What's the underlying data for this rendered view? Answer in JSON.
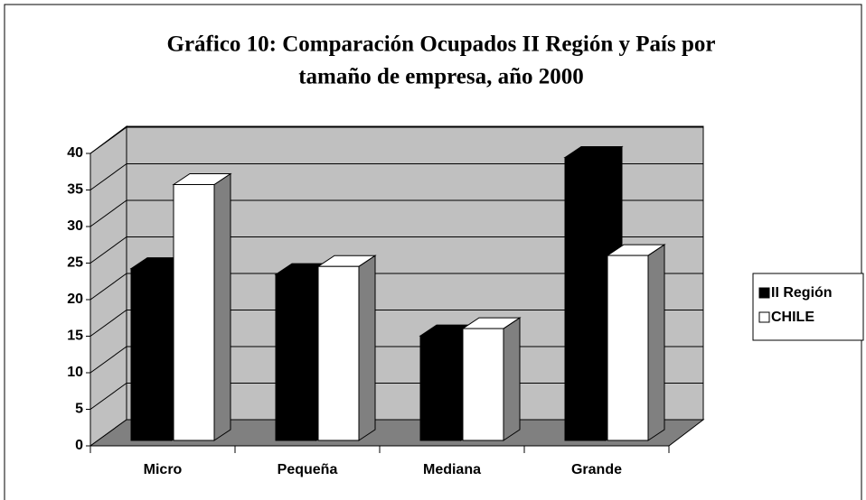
{
  "chart_data": {
    "type": "bar3d",
    "title": [
      "Gráfico 10: Comparación Ocupados II Región y País por",
      "tamaño de empresa, año 2000"
    ],
    "categories": [
      "Micro",
      "Pequeña",
      "Mediana",
      "Grande"
    ],
    "series": [
      {
        "name": "II Región",
        "color": "#000000",
        "values": [
          23.5,
          22.7,
          14.3,
          38.7
        ]
      },
      {
        "name": "CHILE",
        "color": "#ffffff",
        "values": [
          35,
          23.8,
          15.3,
          25.3
        ]
      }
    ],
    "ylim": [
      0,
      40
    ],
    "yticks": [
      0,
      5,
      10,
      15,
      20,
      25,
      30,
      35,
      40
    ],
    "grid": true,
    "legend": "right"
  }
}
